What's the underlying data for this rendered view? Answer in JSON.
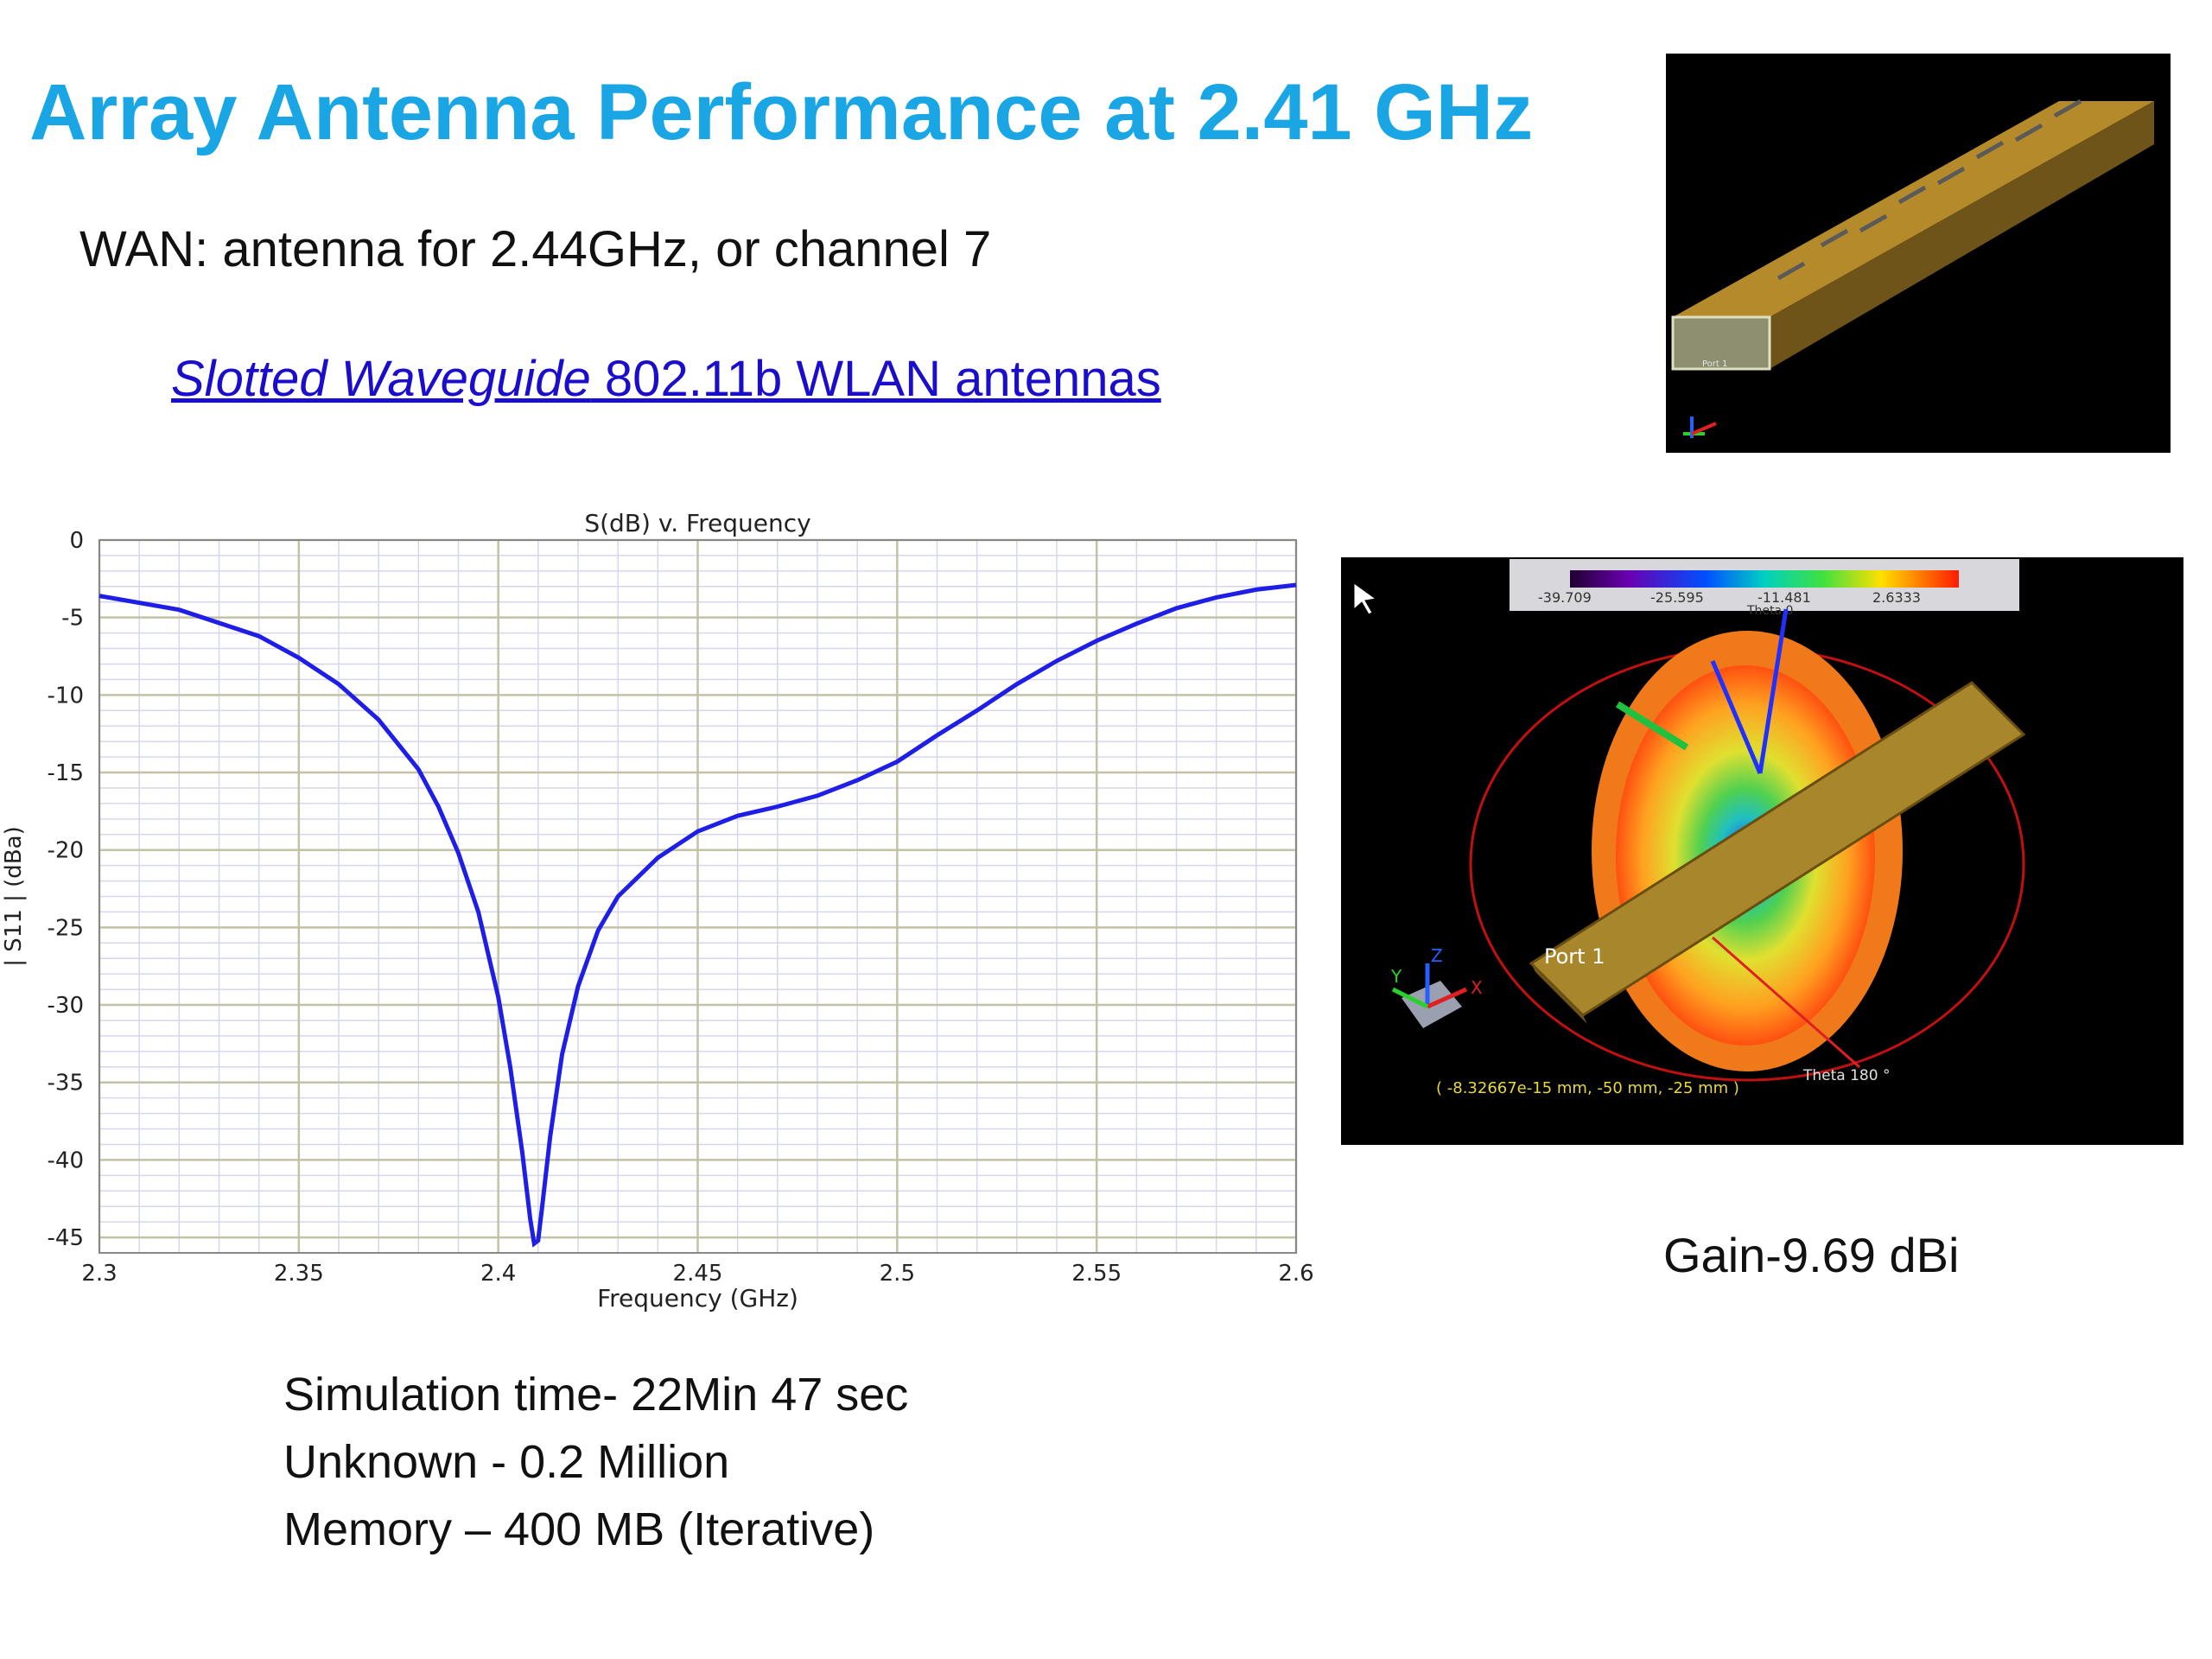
{
  "slide": {
    "title": "Array Antenna Performance at 2.41 GHz",
    "subtitle": "WAN: antenna for 2.44GHz, or channel 7",
    "link_italic": "Slotted Waveguide",
    "link_rest": " 802.11b WLAN antennas",
    "gain": "Gain-9.69 dBi",
    "stats": [
      "Simulation time- 22Min 47 sec",
      "Unknown -  0.2 Million",
      "Memory – 400 MB (Iterative)"
    ]
  },
  "waveguide_image": {
    "port_label": "Port 1"
  },
  "pattern_image": {
    "colorbar_ticks": [
      "-39.709",
      "-25.595",
      "-11.481",
      "2.6333"
    ],
    "colorbar_label": "Theta 0",
    "port_label": "Port 1",
    "theta_label": "Theta 180 °",
    "coord_readout": "( -8.32667e-15 mm, -50 mm, -25 mm )",
    "axes": [
      "X",
      "Y",
      "Z"
    ]
  },
  "chart_data": {
    "type": "line",
    "title": "S(dB) v. Frequency",
    "xlabel": "Frequency (GHz)",
    "ylabel": "| S11 | (dBa)",
    "xlim": [
      2.3,
      2.6
    ],
    "ylim": [
      -46,
      0
    ],
    "xticks": [
      "2.3",
      "2.35",
      "2.4",
      "2.45",
      "2.5",
      "2.55",
      "2.6"
    ],
    "yticks": [
      "0",
      "-5",
      "-10",
      "-15",
      "-20",
      "-25",
      "-30",
      "-35",
      "-40",
      "-45"
    ],
    "grid": true,
    "line_color": "#1e1ee6",
    "series": [
      {
        "x": [
          2.3,
          2.32,
          2.34,
          2.35,
          2.36,
          2.37,
          2.38,
          2.385,
          2.39,
          2.395,
          2.4,
          2.403,
          2.406,
          2.408,
          2.409,
          2.41,
          2.411,
          2.413,
          2.416,
          2.42,
          2.425,
          2.43,
          2.44,
          2.45,
          2.46,
          2.47,
          2.48,
          2.49,
          2.5,
          2.51,
          2.52,
          2.53,
          2.54,
          2.55,
          2.56,
          2.57,
          2.58,
          2.59,
          2.6
        ],
        "y": [
          -3.6,
          -4.5,
          -6.2,
          -7.6,
          -9.3,
          -11.6,
          -14.8,
          -17.2,
          -20.2,
          -24.0,
          -29.5,
          -34.0,
          -39.5,
          -43.8,
          -45.4,
          -45.2,
          -43.0,
          -38.5,
          -33.2,
          -28.8,
          -25.2,
          -23.0,
          -20.5,
          -18.8,
          -17.8,
          -17.2,
          -16.5,
          -15.5,
          -14.3,
          -12.6,
          -11.0,
          -9.3,
          -7.8,
          -6.5,
          -5.4,
          -4.4,
          -3.7,
          -3.2,
          -2.9
        ]
      }
    ]
  }
}
